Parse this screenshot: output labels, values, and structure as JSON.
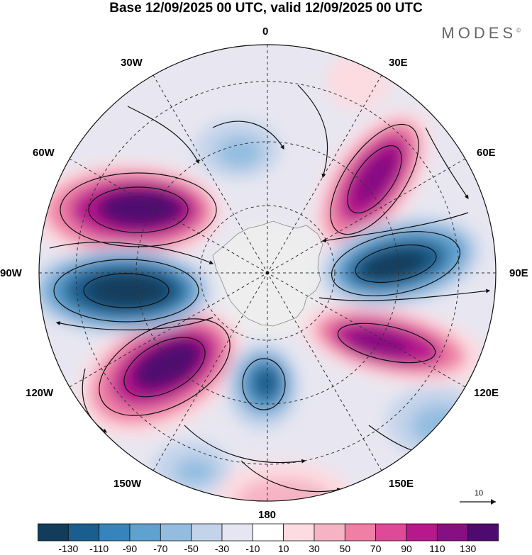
{
  "title": "Base 12/09/2025 00 UTC, valid 12/09/2025 00 UTC",
  "brand": "MODES",
  "brand_mark": "©",
  "meridian_labels": {
    "m0": "0",
    "m30e": "30E",
    "m60e": "60E",
    "m90e": "90E",
    "m120e": "120E",
    "m150e": "150E",
    "m180": "180",
    "m150w": "150W",
    "m120w": "120W",
    "m90w": "90W",
    "m60w": "60W",
    "m30w": "30W"
  },
  "reference_vector": {
    "label": "10"
  },
  "colorbar": {
    "colors": [
      "#123c5c",
      "#1a5e8f",
      "#3684bb",
      "#5fa1cf",
      "#93bde0",
      "#c3d3ea",
      "#e6e6f2",
      "#ffffff",
      "#fcdbe1",
      "#f6b3c3",
      "#ef7fa5",
      "#de4a98",
      "#b8188c",
      "#860f82",
      "#4f0a70"
    ],
    "ticks": [
      "-130",
      "-110",
      "-90",
      "-70",
      "-50",
      "-30",
      "-10",
      "10",
      "30",
      "50",
      "70",
      "90",
      "110",
      "130"
    ]
  }
}
